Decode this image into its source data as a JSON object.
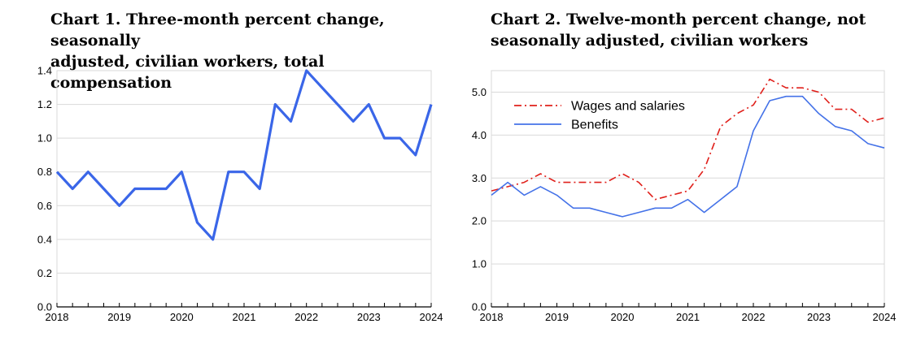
{
  "chart_data": [
    {
      "type": "line",
      "title": "Chart 1. Three-month percent change, seasonally\nadjusted, civilian workers, total compensation",
      "xlabel": "",
      "ylabel": "",
      "xlim": [
        2018,
        2024
      ],
      "ylim": [
        0,
        1.4
      ],
      "xticks": [
        "2018",
        "2019",
        "2020",
        "2021",
        "2022",
        "2023",
        "2024"
      ],
      "yticks": [
        "0.0",
        "0.2",
        "0.4",
        "0.6",
        "0.8",
        "1.0",
        "1.2",
        "1.4"
      ],
      "grid": true,
      "colors": [
        "#3A66E8"
      ],
      "series": [
        {
          "x": [
            2018,
            2018.25,
            2018.5,
            2018.75,
            2019,
            2019.25,
            2019.5,
            2019.75,
            2020,
            2020.25,
            2020.5,
            2020.75,
            2021,
            2021.25,
            2021.5,
            2021.75,
            2022,
            2022.25,
            2022.5,
            2022.75,
            2023,
            2023.25,
            2023.5,
            2023.75,
            2024
          ],
          "values": [
            0.8,
            0.7,
            0.8,
            0.7,
            0.6,
            0.7,
            0.7,
            0.7,
            0.8,
            0.5,
            0.4,
            0.8,
            0.8,
            0.7,
            1.2,
            1.1,
            1.4,
            1.3,
            1.2,
            1.1,
            1.2,
            1.0,
            1.0,
            0.9,
            1.2
          ]
        }
      ]
    },
    {
      "type": "line",
      "title": "Chart 2. Twelve-month percent change, not\nseasonally adjusted, civilian workers",
      "xlabel": "",
      "ylabel": "",
      "xlim": [
        2018,
        2024
      ],
      "ylim": [
        0,
        5.5
      ],
      "xticks": [
        "2018",
        "2019",
        "2020",
        "2021",
        "2022",
        "2023",
        "2024"
      ],
      "yticks": [
        "0.0",
        "1.0",
        "2.0",
        "3.0",
        "4.0",
        "5.0"
      ],
      "grid": true,
      "legend": "top-left",
      "series": [
        {
          "name": "Wages and salaries",
          "color": "#E0201B",
          "style": "dash-dot",
          "x": [
            2018,
            2018.25,
            2018.5,
            2018.75,
            2019,
            2019.25,
            2019.5,
            2019.75,
            2020,
            2020.25,
            2020.5,
            2020.75,
            2021,
            2021.25,
            2021.5,
            2021.75,
            2022,
            2022.25,
            2022.5,
            2022.75,
            2023,
            2023.25,
            2023.5,
            2023.75,
            2024
          ],
          "values": [
            2.7,
            2.8,
            2.9,
            3.1,
            2.9,
            2.9,
            2.9,
            2.9,
            3.1,
            2.9,
            2.5,
            2.6,
            2.7,
            3.2,
            4.2,
            4.5,
            4.7,
            5.3,
            5.1,
            5.1,
            5.0,
            4.6,
            4.6,
            4.3,
            4.4
          ]
        },
        {
          "name": "Benefits",
          "color": "#4472E8",
          "style": "solid",
          "x": [
            2018,
            2018.25,
            2018.5,
            2018.75,
            2019,
            2019.25,
            2019.5,
            2019.75,
            2020,
            2020.25,
            2020.5,
            2020.75,
            2021,
            2021.25,
            2021.5,
            2021.75,
            2022,
            2022.25,
            2022.5,
            2022.75,
            2023,
            2023.25,
            2023.5,
            2023.75,
            2024
          ],
          "values": [
            2.6,
            2.9,
            2.6,
            2.8,
            2.6,
            2.3,
            2.3,
            2.2,
            2.1,
            2.2,
            2.3,
            2.3,
            2.5,
            2.2,
            2.5,
            2.8,
            4.1,
            4.8,
            4.9,
            4.9,
            4.5,
            4.2,
            4.1,
            3.8,
            3.7
          ]
        }
      ]
    }
  ]
}
